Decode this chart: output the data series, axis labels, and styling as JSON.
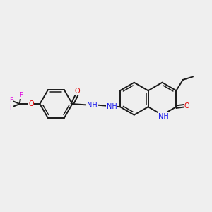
{
  "background_color": "#efefef",
  "bond_color": "#1a1a1a",
  "bond_lw": 1.4,
  "inner_lw": 1.1,
  "atom_colors": {
    "O": "#e00000",
    "N": "#1a1aee",
    "F": "#e000e0",
    "NH_amide": "#1a1aee",
    "NH_quinoline": "#1a1aee"
  },
  "figsize": [
    3.0,
    3.0
  ],
  "dpi": 100,
  "xlim": [
    0,
    10
  ],
  "ylim": [
    0,
    10
  ],
  "font_size_atom": 7.0,
  "font_size_small": 6.2
}
